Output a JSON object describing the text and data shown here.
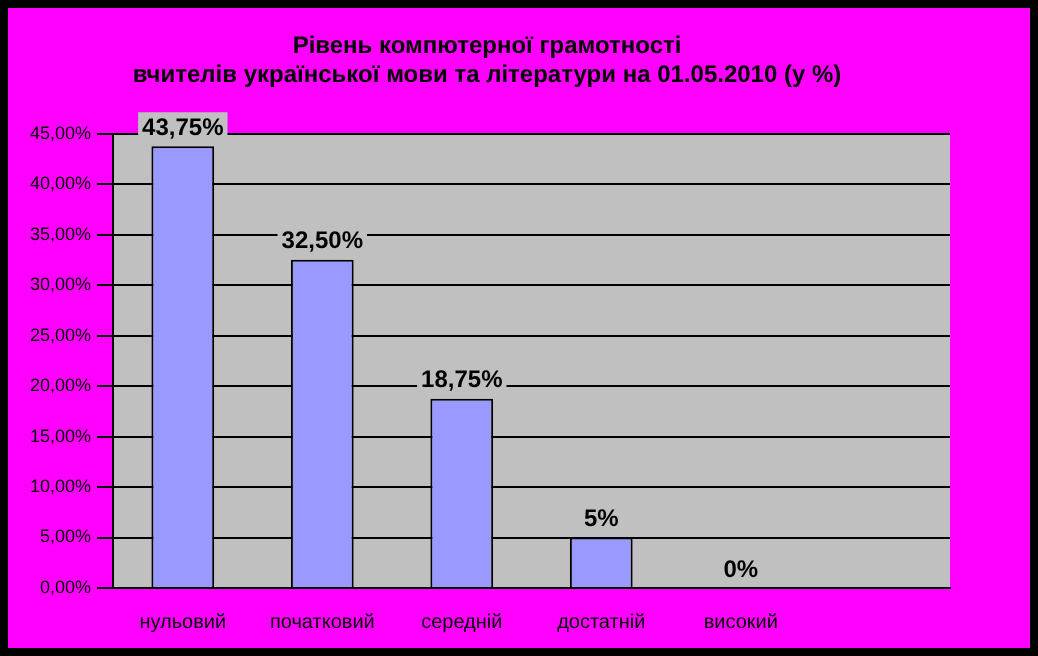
{
  "chart_data": {
    "type": "bar",
    "title": [
      "Рівень компютерної грамотності",
      "вчителів української мови та літератури на 01.05.2010 (у %)"
    ],
    "categories": [
      "нульовий",
      "початковий",
      "середній",
      "достатній",
      "високий",
      null
    ],
    "series": [
      {
        "color": "#9999ff",
        "values": [
          43.75,
          32.5,
          18.75,
          5,
          0,
          null
        ],
        "value_labels": [
          "43,75%",
          "32,50%",
          "18,75%",
          "5%",
          "0%",
          null
        ]
      }
    ],
    "ylim": [
      0,
      45
    ],
    "yticks": [
      {
        "value": 0,
        "label": "0,00%"
      },
      {
        "value": 5,
        "label": "5,00%"
      },
      {
        "value": 10,
        "label": "10,00%"
      },
      {
        "value": 15,
        "label": "15,00%"
      },
      {
        "value": 20,
        "label": "20,00%"
      },
      {
        "value": 25,
        "label": "25,00%"
      },
      {
        "value": 30,
        "label": "30,00%"
      },
      {
        "value": 35,
        "label": "35,00%"
      },
      {
        "value": 40,
        "label": "40,00%"
      },
      {
        "value": 45,
        "label": "45,00%"
      }
    ],
    "grid": "y",
    "legend": false
  }
}
